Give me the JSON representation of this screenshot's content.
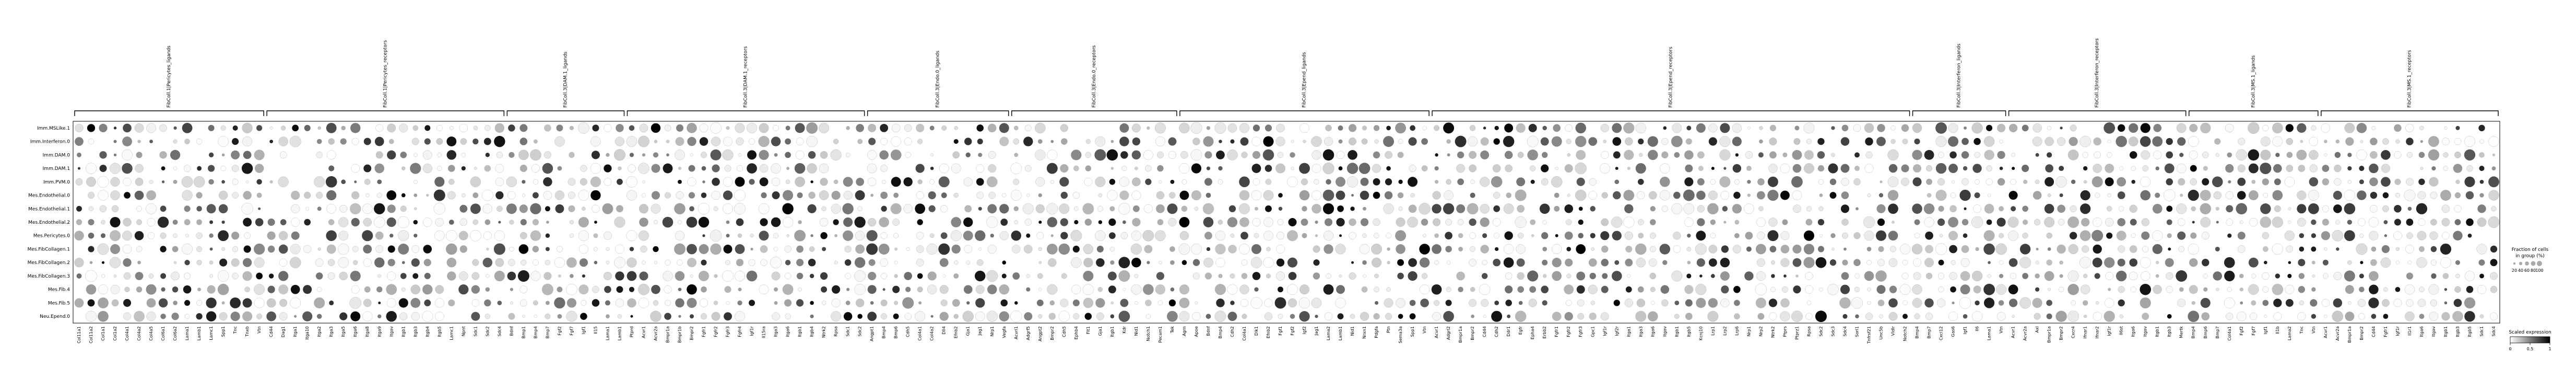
{
  "chart_data": {
    "type": "dotplot",
    "rows": [
      "Imm.MSLike.1",
      "Imm.Interferon.0",
      "Imm.DAM.0",
      "Imm.DAM.1",
      "Imm.PVM.0",
      "Mes.Endothelial.0",
      "Mes.Endothelial.1",
      "Mes.Endothelial.2",
      "Mes.Pericytes.0",
      "Mes.FibCollagen.1",
      "Mes.FibCollagen.2",
      "Mes.FibCollagen.3",
      "Mes.Fib.4",
      "Mes.Fib.5",
      "Neu.Epend.0"
    ],
    "groups": [
      {
        "name": "FibColl.1|Pericytes_ligands",
        "start": 0,
        "count": 16
      },
      {
        "name": "FibColl.1|Pericytes_receptors",
        "start": 16,
        "count": 20
      },
      {
        "name": "FibColl.3|DAM.1_ligands",
        "start": 36,
        "count": 10
      },
      {
        "name": "FibColl.3|DAM.1_receptors",
        "start": 46,
        "count": 20
      },
      {
        "name": "FibColl.3|Endo.0_ligands",
        "start": 66,
        "count": 12
      },
      {
        "name": "FibColl.3|Endo.0_receptors",
        "start": 78,
        "count": 14
      },
      {
        "name": "FibColl.3|Epend_ligands",
        "start": 92,
        "count": 21
      },
      {
        "name": "FibColl.3|Epend_receptors",
        "start": 113,
        "count": 40
      },
      {
        "name": "FibColl.3|Interferon_ligands",
        "start": 153,
        "count": 8
      },
      {
        "name": "FibColl.3|Interferon_receptors",
        "start": 161,
        "count": 15
      },
      {
        "name": "FibColl.3|MS.1_ligands",
        "start": 176,
        "count": 11
      },
      {
        "name": "FibColl.3|MS.1_receptors",
        "start": 187,
        "count": 15
      }
    ],
    "genes": [
      "Col11a1",
      "Col11a2",
      "Col1a1",
      "Col1a2",
      "Col4a1",
      "Col4a2",
      "Col4a5",
      "Col6a1",
      "Col6a2",
      "Lama1",
      "Lamb1",
      "Lamc1",
      "Spp1",
      "Tnc",
      "Tnxb",
      "Vtn",
      "Cd44",
      "Dag1",
      "Itga1",
      "Itga10",
      "Itga2",
      "Itga3",
      "Itga5",
      "Itga6",
      "Itga8",
      "Itga9",
      "Itgav",
      "Itgb1",
      "Itgb3",
      "Itgb4",
      "Itgb5",
      "Lamc1",
      "Npnt",
      "Sdc1",
      "Sdc2",
      "Sdc4",
      "Bdnf",
      "Bmp1",
      "Bmp4",
      "Bmp7",
      "Fgf2",
      "Fgf7",
      "Igf1",
      "Il15",
      "Lama1",
      "Lamb1",
      "Ptprd",
      "Acvr1",
      "Acvr2a",
      "Bmpr1a",
      "Bmpr1b",
      "Bmpr2",
      "Fgfr1",
      "Fgfr2",
      "Fgfr3",
      "Fgfr4",
      "Igf1r",
      "Il15ra",
      "Itga3",
      "Itga6",
      "Itgb1",
      "Itgb4",
      "Ntrk2",
      "Rpsa",
      "Sdc1",
      "Sdc2",
      "Angpt1",
      "Bmp4",
      "Bmp6",
      "Cdh5",
      "Col4a1",
      "Col4a2",
      "Dll4",
      "Efnb2",
      "Gja1",
      "Jag1",
      "Nrp1",
      "Vegfa",
      "Acvrl1",
      "Adgrf5",
      "Angpt2",
      "Bmpr2",
      "Cdh5",
      "Ephb4",
      "Flt1",
      "Gja1",
      "Itgb1",
      "Kdr",
      "Nid1",
      "Notch1",
      "Pecam1",
      "Tek",
      "Agrn",
      "Apoe",
      "Bdnf",
      "Bmp4",
      "Cdh2",
      "Col4a1",
      "Dlk1",
      "Efnb2",
      "Fgf1",
      "Fgf2",
      "Igf2",
      "Jag1",
      "Lama2",
      "Lamb1",
      "Nid1",
      "Nrxn1",
      "Pdgfa",
      "Ptn",
      "Sema3a",
      "Spp1",
      "Vtn",
      "Acvr1",
      "Adgrl2",
      "Bmpr1a",
      "Bmpr2",
      "Cd44",
      "Cdh2",
      "Ddr1",
      "Egfr",
      "Epha4",
      "Erbb2",
      "Fgfr1",
      "Fgfr2",
      "Fgfr3",
      "Gpc1",
      "Igf1r",
      "Igf2r",
      "Itga1",
      "Itga3",
      "Itga6",
      "Itgav",
      "Itgb1",
      "Itgb5",
      "Kcnj10",
      "Lrp1",
      "Lrp2",
      "Lrp6",
      "Nrp1",
      "Nrp2",
      "Ntrk2",
      "Ptprs",
      "Ptprz1",
      "Rpsa",
      "Sdc2",
      "Sdc3",
      "Sdc4",
      "Sorl1",
      "Tnfrsf21",
      "Unc5b",
      "Vldlr",
      "Notch2",
      "Bmp4",
      "Bmp7",
      "Cxcl12",
      "Gas6",
      "Igf1",
      "Il6",
      "Lama1",
      "Vtn",
      "Acvr1",
      "Acvr2a",
      "Axl",
      "Bmpr1a",
      "Bmpr2",
      "Cxcr4",
      "Ifnar1",
      "Ifnar2",
      "Igf1r",
      "Il6st",
      "Itga6",
      "Itgav",
      "Itgb1",
      "Itgb3",
      "Mertk",
      "Bmp4",
      "Bmp6",
      "Bmp7",
      "Col4a1",
      "Fgf2",
      "Fgf7",
      "Igf1",
      "Il1b",
      "Lama2",
      "Tnc",
      "Vtn",
      "Acvr1",
      "Acvr2a",
      "Bmpr1a",
      "Bmpr2",
      "Cd44",
      "Fgfr1",
      "Igf1r",
      "Il1r1",
      "Itga6",
      "Itgav",
      "Itgb1",
      "Itgb3",
      "Itgb5",
      "Sdc1",
      "Sdc4"
    ],
    "legend": {
      "size_title_line1": "Fraction of cells",
      "size_title_line2": "in group (%)",
      "size_ticks": [
        20,
        40,
        60,
        80,
        100
      ],
      "color_title": "Scaled expression",
      "color_ticks": [
        0,
        0.5,
        1.0
      ],
      "colormap": [
        "#ffffff",
        "#000000"
      ]
    },
    "xlabel": "",
    "ylabel": ""
  }
}
